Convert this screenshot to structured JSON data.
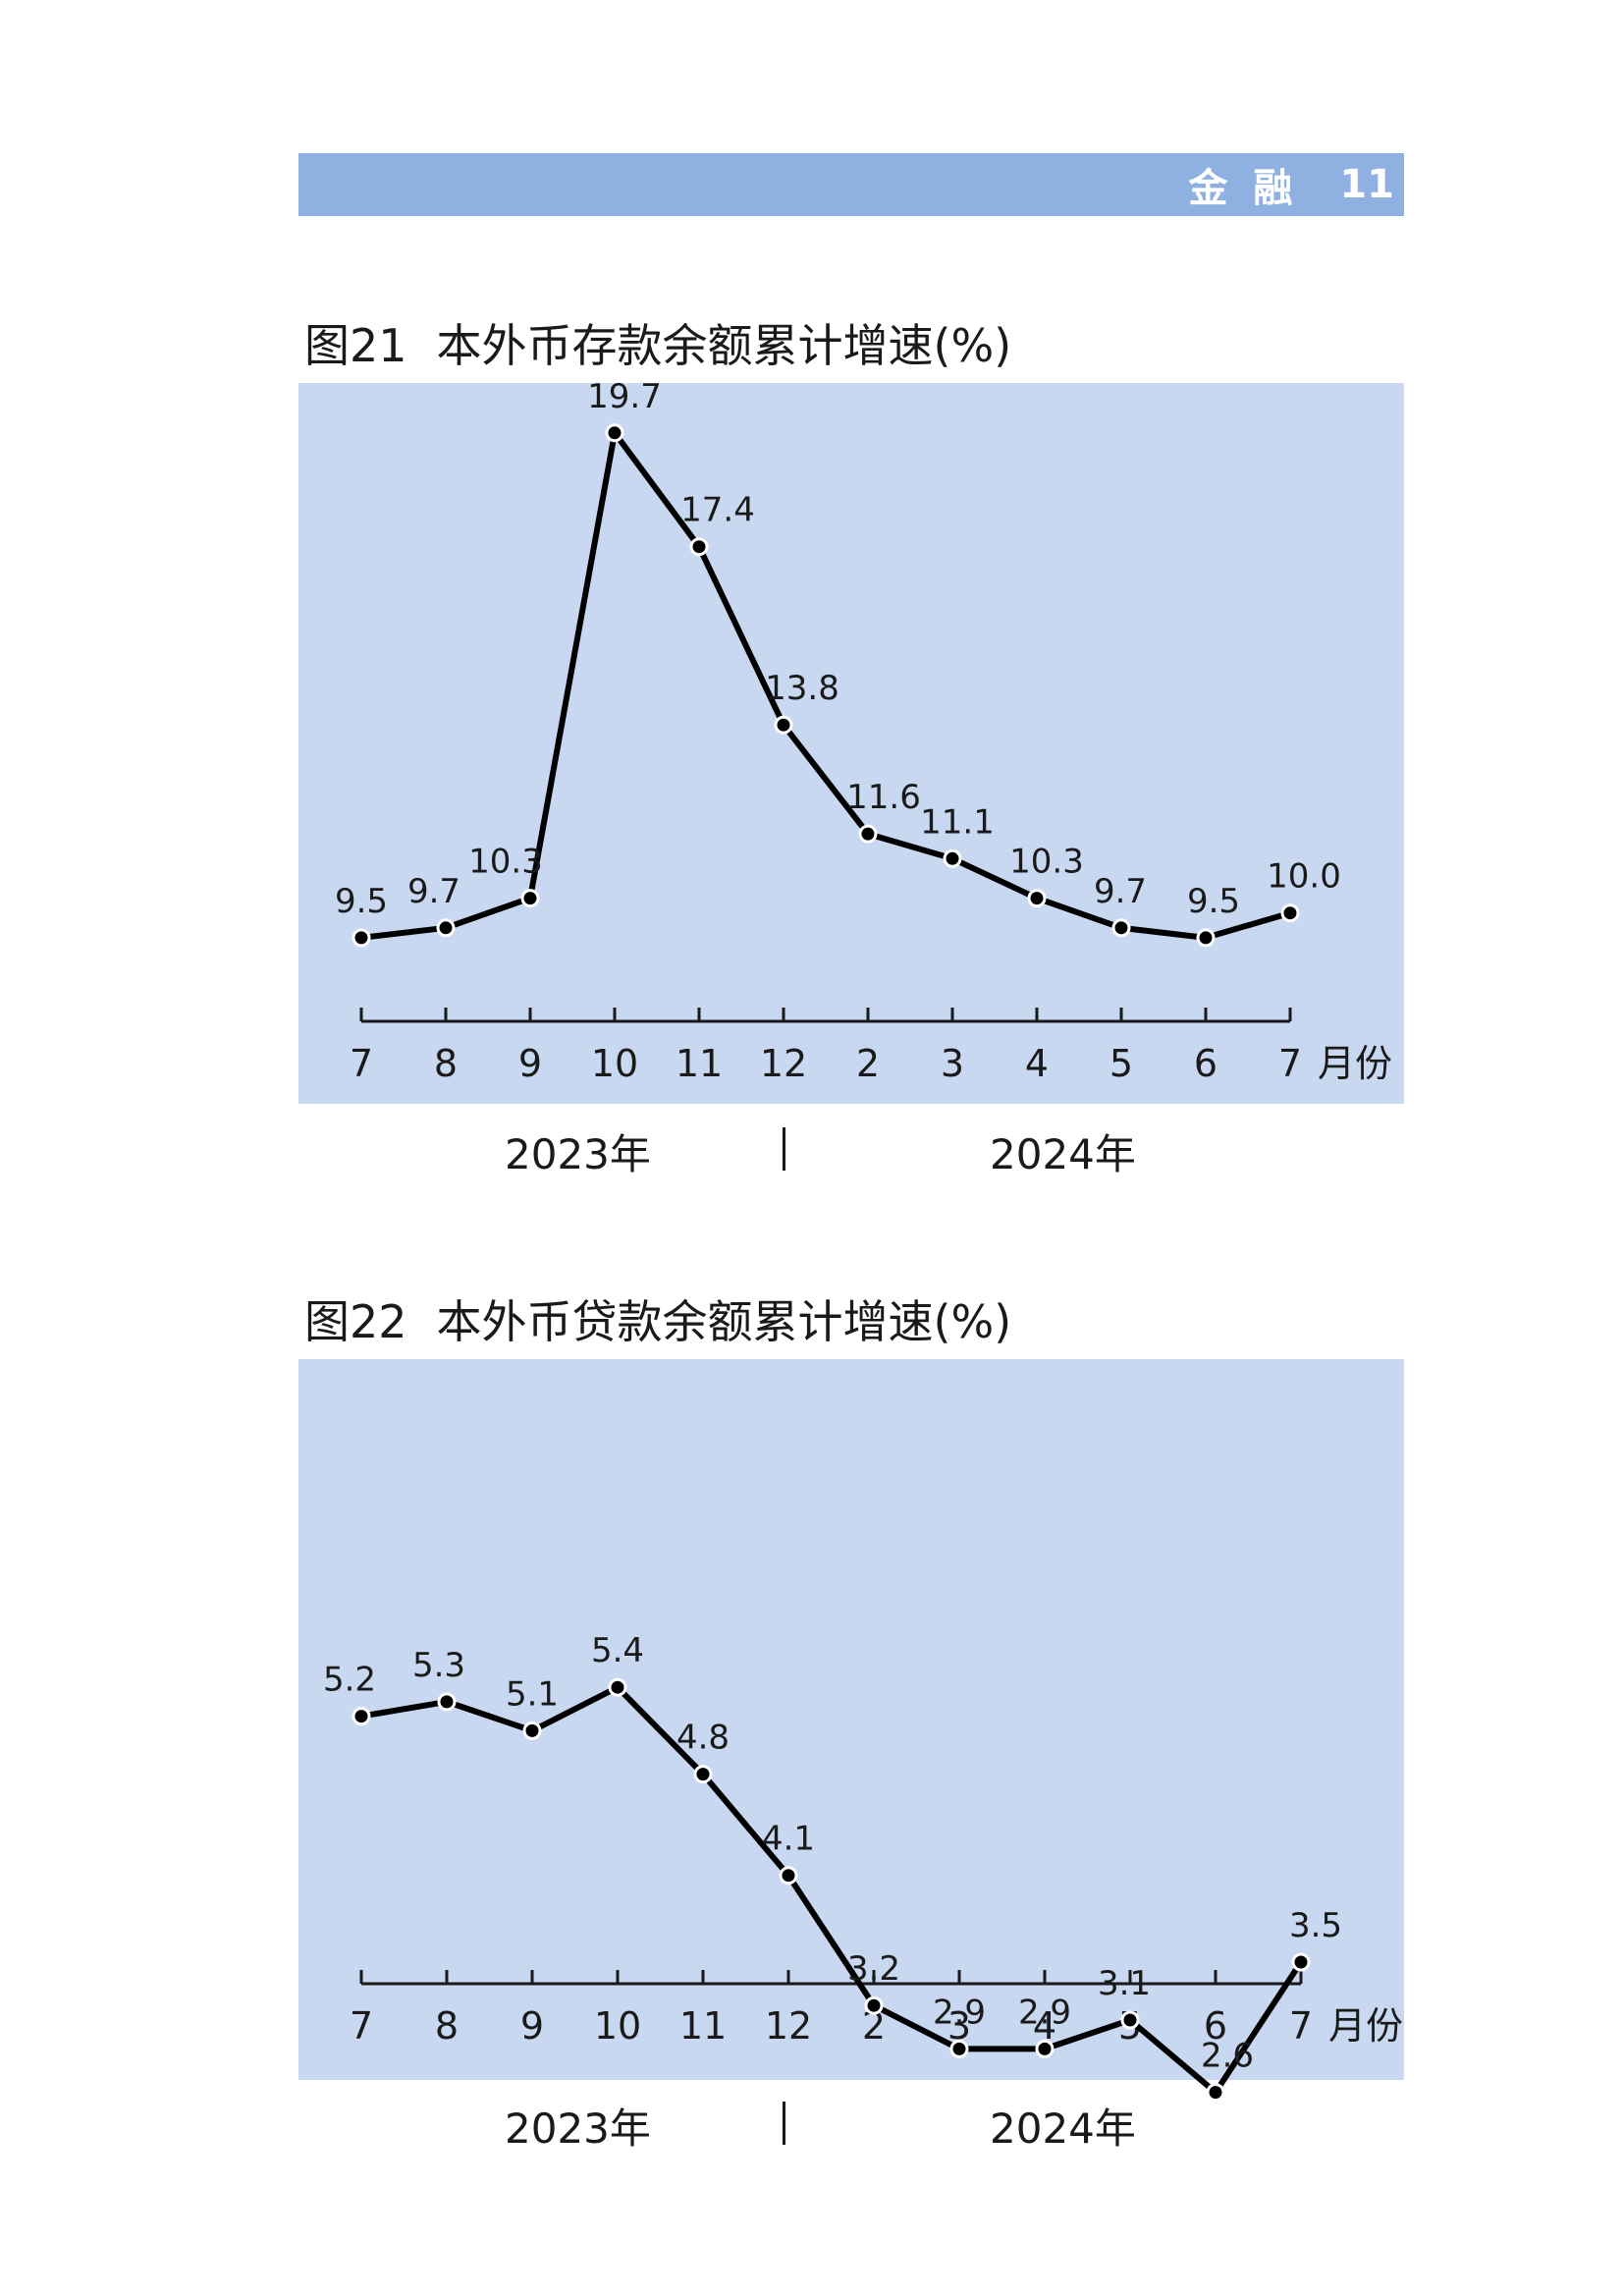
{
  "header": {
    "section": "金融",
    "page_number": "11"
  },
  "chart_data": [
    {
      "type": "line",
      "fig_num": "图21",
      "title": "本外币存款余额累计增速(%)",
      "categories": [
        "7",
        "8",
        "9",
        "10",
        "11",
        "12",
        "2",
        "3",
        "4",
        "5",
        "6",
        "7"
      ],
      "values": [
        9.5,
        9.7,
        10.3,
        19.7,
        17.4,
        13.8,
        11.6,
        11.1,
        10.3,
        9.7,
        9.5,
        10.0
      ],
      "value_labels": [
        "9.5",
        "9.7",
        "10.3",
        "19.7",
        "17.4",
        "13.8",
        "11.6",
        "11.1",
        "10.3",
        "9.7",
        "9.5",
        "10.0"
      ],
      "xlabel": "月份",
      "years": [
        "2023年",
        "|",
        "2024年"
      ],
      "grid": false,
      "colors": {
        "panel": "#c8d8f0",
        "line": "#000000"
      }
    },
    {
      "type": "line",
      "fig_num": "图22",
      "title": "本外币贷款余额累计增速(%)",
      "categories": [
        "7",
        "8",
        "9",
        "10",
        "11",
        "12",
        "2",
        "3",
        "4",
        "5",
        "6",
        "7"
      ],
      "values": [
        5.2,
        5.3,
        5.1,
        5.4,
        4.8,
        4.1,
        3.2,
        2.9,
        2.9,
        3.1,
        2.6,
        3.5
      ],
      "value_labels": [
        "5.2",
        "5.3",
        "5.1",
        "5.4",
        "4.8",
        "4.1",
        "3.2",
        "2.9",
        "2.9",
        "3.1",
        "2.6",
        "3.5"
      ],
      "xlabel": "月份",
      "years": [
        "2023年",
        "|",
        "2024年"
      ],
      "grid": false,
      "colors": {
        "panel": "#c8d8f0",
        "line": "#000000"
      }
    }
  ]
}
